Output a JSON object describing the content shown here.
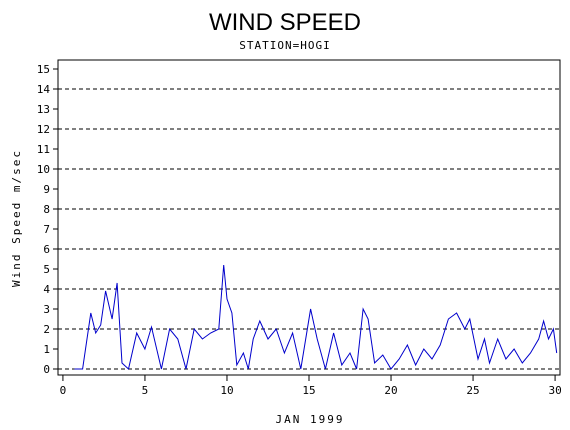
{
  "chart_data": {
    "type": "line",
    "title": "WIND SPEED",
    "subtitle": "STATION=HOGI",
    "x_label": "JAN 1999",
    "y_label": "Wind Speed m/sec",
    "xlim": [
      -0.3,
      30.3
    ],
    "ylim": [
      -0.3,
      15.45
    ],
    "xticks": [
      0,
      5,
      10,
      15,
      20,
      25,
      30
    ],
    "yticks": [
      0,
      1,
      2,
      3,
      4,
      5,
      6,
      7,
      8,
      9,
      10,
      11,
      12,
      13,
      14,
      15
    ],
    "grid_lines": [
      0,
      2,
      4,
      6,
      8,
      10,
      12,
      14
    ],
    "series": [
      {
        "color": "#0000cc",
        "x": [
          0.7,
          1.2,
          1.7,
          2.0,
          2.3,
          2.6,
          3.0,
          3.3,
          3.6,
          4.0,
          4.5,
          5.0,
          5.4,
          6.0,
          6.5,
          7.0,
          7.5,
          8.0,
          8.5,
          9.0,
          9.5,
          9.8,
          10.0,
          10.3,
          10.6,
          11.0,
          11.3,
          11.6,
          12.0,
          12.5,
          13.0,
          13.5,
          14.0,
          14.5,
          14.8,
          15.1,
          15.5,
          16.0,
          16.5,
          17.0,
          17.5,
          17.9,
          18.3,
          18.6,
          19.0,
          19.5,
          20.0,
          20.5,
          21.0,
          21.5,
          22.0,
          22.5,
          23.0,
          23.5,
          24.0,
          24.5,
          24.8,
          25.3,
          25.7,
          26.0,
          26.5,
          27.0,
          27.5,
          28.0,
          28.5,
          29.0,
          29.3,
          29.6,
          29.9,
          30.1
        ],
        "values": [
          0,
          0,
          2.8,
          1.8,
          2.2,
          3.9,
          2.5,
          4.3,
          0.3,
          0,
          1.8,
          1,
          2.1,
          0,
          2,
          1.5,
          0,
          2,
          1.5,
          1.8,
          2,
          5.2,
          3.5,
          2.8,
          0.2,
          0.8,
          0,
          1.5,
          2.4,
          1.5,
          2,
          0.8,
          1.8,
          0,
          1.5,
          3,
          1.5,
          0,
          1.8,
          0.2,
          0.8,
          0,
          3,
          2.5,
          0.3,
          0.7,
          0,
          0.5,
          1.2,
          0.2,
          1,
          0.5,
          1.2,
          2.5,
          2.8,
          2,
          2.5,
          0.5,
          1.5,
          0.3,
          1.5,
          0.5,
          1,
          0.3,
          0.8,
          1.5,
          2.4,
          1.5,
          2,
          0.8
        ]
      }
    ]
  }
}
